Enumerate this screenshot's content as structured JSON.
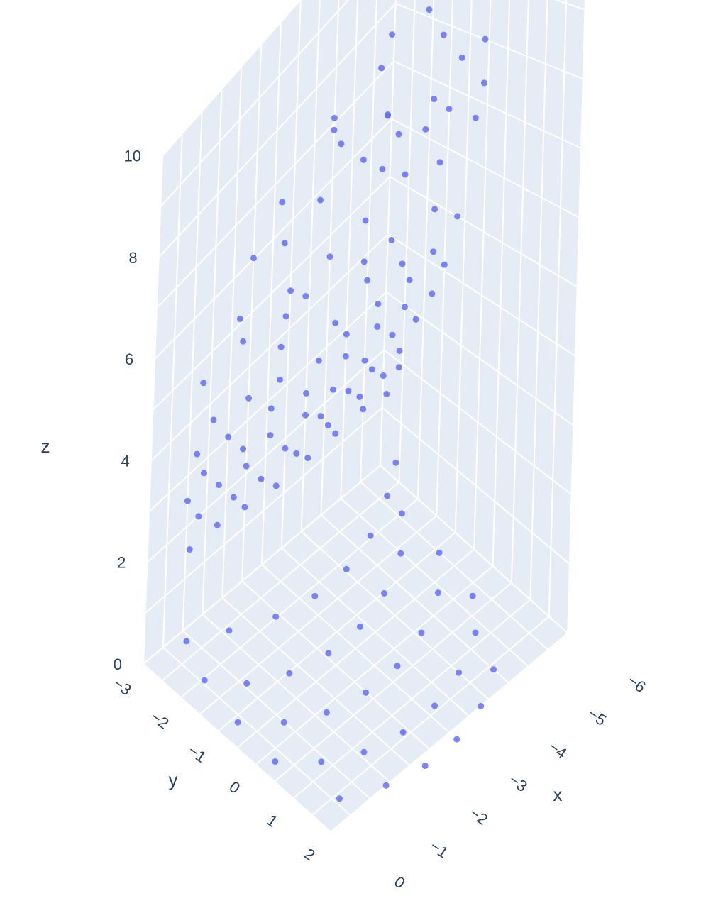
{
  "chart_data": {
    "type": "scatter3d",
    "marker_color": "#636efa",
    "pane_color": "#e5ecf6",
    "grid_color": "#ffffff",
    "text_color": "#2a3f5f",
    "axes": {
      "x": {
        "title": "x",
        "range": [
          -6,
          0
        ],
        "ticks": [
          -6,
          -5,
          -4,
          -3,
          -2,
          -1,
          0
        ],
        "tick_labels": [
          "−6",
          "−5",
          "−4",
          "−3",
          "−2",
          "−1",
          "0"
        ]
      },
      "y": {
        "title": "y",
        "range": [
          -3,
          2
        ],
        "ticks": [
          -3,
          -2,
          -1,
          0,
          1,
          2
        ],
        "tick_labels": [
          "−3",
          "−2",
          "−1",
          "0",
          "1",
          "2"
        ]
      },
      "z": {
        "title": "z",
        "range": [
          0,
          10
        ],
        "ticks": [
          0,
          2,
          4,
          6,
          8,
          10
        ],
        "tick_labels": [
          "0",
          "2",
          "4",
          "6",
          "8",
          "10"
        ]
      }
    },
    "points": [
      [
        -3,
        -0.05,
        10.3
      ],
      [
        -2.4,
        0.3,
        10.25
      ],
      [
        -4.3,
        -0.4,
        9.7
      ],
      [
        -2.7,
        -1.2,
        8.9
      ],
      [
        -4.6,
        -0.3,
        9.1
      ],
      [
        -5,
        0.4,
        8.9
      ],
      [
        -2.6,
        -0.9,
        8.6
      ],
      [
        -3.3,
        -0.4,
        8.7
      ],
      [
        -3.6,
        -0.7,
        8.4
      ],
      [
        -4.3,
        -0.2,
        8.3
      ],
      [
        -5.2,
        -0.4,
        8.3
      ],
      [
        -3.1,
        -1.6,
        8.3
      ],
      [
        -2.0,
        -1.8,
        7.8
      ],
      [
        -3.4,
        -1.1,
        7.7
      ],
      [
        -4.3,
        -1.1,
        7.5
      ],
      [
        -5.1,
        -0.6,
        7.5
      ],
      [
        -5.8,
        -0.4,
        7.5
      ],
      [
        -1.9,
        -1.6,
        7.2
      ],
      [
        -1.6,
        -2.1,
        7.0
      ],
      [
        -2.9,
        -1.7,
        7.2
      ],
      [
        -4.1,
        -1.3,
        7.0
      ],
      [
        -5.0,
        -1.1,
        7.1
      ],
      [
        -5.9,
        -0.7,
        6.8
      ],
      [
        -1.4,
        -2.2,
        6.0
      ],
      [
        -2.3,
        -1.8,
        6.0
      ],
      [
        -3.2,
        -1.7,
        6.0
      ],
      [
        -4.1,
        -1.7,
        6.0
      ],
      [
        -4.9,
        -1.5,
        6.3
      ],
      [
        -5.6,
        -1.3,
        6.1
      ],
      [
        -1.6,
        -2.3,
        5.4
      ],
      [
        -2.4,
        -2.0,
        5.4
      ],
      [
        -3.0,
        -2.1,
        5.3
      ],
      [
        -4.1,
        -1.7,
        5.3
      ],
      [
        -4.8,
        -1.7,
        5.2
      ],
      [
        -5.7,
        -1.5,
        5.2
      ],
      [
        -6.0,
        -1.2,
        5.0
      ],
      [
        -1.0,
        -2.7,
        4.9
      ],
      [
        -2.5,
        -2.2,
        4.7
      ],
      [
        -3.6,
        -1.9,
        4.5
      ],
      [
        -4.5,
        -2.0,
        4.6
      ],
      [
        -5.3,
        -1.9,
        4.4
      ],
      [
        -5.9,
        -1.7,
        4.3
      ],
      [
        -1.2,
        -2.6,
        4.1
      ],
      [
        -1.9,
        -2.4,
        4.1
      ],
      [
        -2.6,
        -2.3,
        4.0
      ],
      [
        -3.3,
        -2.0,
        4.0
      ],
      [
        -4.0,
        -2.0,
        4.0
      ],
      [
        -4.8,
        -2.0,
        4.0
      ],
      [
        -5.5,
        -1.9,
        4.0
      ],
      [
        -6.1,
        -1.6,
        4.0
      ],
      [
        -1.0,
        -2.8,
        3.5
      ],
      [
        -1.6,
        -2.6,
        3.5
      ],
      [
        -2.5,
        -2.4,
        3.5
      ],
      [
        -3.2,
        -2.2,
        3.4
      ],
      [
        -4.2,
        -2.2,
        3.4
      ],
      [
        -5.0,
        -2.2,
        3.4
      ],
      [
        -5.6,
        -2.1,
        3.4
      ],
      [
        -6.1,
        -1.9,
        3.4
      ],
      [
        -1.2,
        -2.8,
        3.0
      ],
      [
        -2.0,
        -2.6,
        3.0
      ],
      [
        -2.6,
        -2.5,
        2.9
      ],
      [
        -3.3,
        -2.3,
        2.9
      ],
      [
        -4.0,
        -2.3,
        2.9
      ],
      [
        -4.8,
        -2.3,
        2.9
      ],
      [
        -5.5,
        -2.3,
        2.9
      ],
      [
        -6.0,
        -2.2,
        2.9
      ],
      [
        -1.0,
        -3.0,
        2.5
      ],
      [
        -1.6,
        -2.8,
        2.5
      ],
      [
        -2.2,
        -2.7,
        2.5
      ],
      [
        -3.0,
        -2.5,
        2.4
      ],
      [
        -3.9,
        -2.5,
        2.4
      ],
      [
        -4.6,
        -2.5,
        2.4
      ],
      [
        -5.2,
        -2.5,
        2.4
      ],
      [
        -5.8,
        -2.4,
        2.4
      ],
      [
        -1.3,
        -3.0,
        2.0
      ],
      [
        -2.0,
        -2.8,
        2.0
      ],
      [
        -2.6,
        -2.7,
        2.0
      ],
      [
        -3.4,
        -2.6,
        2.0
      ],
      [
        -4.2,
        -2.6,
        2.0
      ],
      [
        -5.0,
        -2.6,
        2.0
      ],
      [
        -5.6,
        -2.6,
        2.0
      ],
      [
        -6.0,
        -2.6,
        1.9
      ],
      [
        -1.1,
        -3.0,
        1.5
      ],
      [
        -1.8,
        -3.0,
        1.5
      ],
      [
        -2.4,
        -2.9,
        1.5
      ],
      [
        -3.1,
        -2.8,
        1.5
      ],
      [
        -3.9,
        -2.8,
        1.5
      ],
      [
        -4.6,
        -2.8,
        1.5
      ],
      [
        -5.3,
        -2.8,
        1.5
      ],
      [
        -5.9,
        -2.8,
        1.4
      ],
      [
        -0.5,
        -2.4,
        0.5
      ],
      [
        -1.2,
        -2.0,
        0.5
      ],
      [
        -2.0,
        -1.6,
        0.5
      ],
      [
        -2.8,
        -1.4,
        0.5
      ],
      [
        -3.6,
        -1.4,
        0.5
      ],
      [
        -4.4,
        -1.6,
        0.5
      ],
      [
        -5.2,
        -2.0,
        0.5
      ],
      [
        -5.8,
        -2.4,
        0.5
      ],
      [
        -0.4,
        -1.8,
        0.2
      ],
      [
        -0.9,
        -1.2,
        0.2
      ],
      [
        -1.6,
        -0.8,
        0.2
      ],
      [
        -2.4,
        -0.6,
        0.2
      ],
      [
        -3.2,
        -0.6,
        0.2
      ],
      [
        -4.0,
        -0.8,
        0.2
      ],
      [
        -4.8,
        -1.2,
        0.2
      ],
      [
        -5.4,
        -1.8,
        0.2
      ],
      [
        -0.3,
        -0.8,
        0.1
      ],
      [
        -0.9,
        -0.2,
        0.1
      ],
      [
        -1.6,
        0.2,
        0.1
      ],
      [
        -2.4,
        0.4,
        0.1
      ],
      [
        -3.2,
        0.4,
        0.1
      ],
      [
        -4.0,
        0.2,
        0.1
      ],
      [
        -4.8,
        -0.2,
        0.1
      ],
      [
        -5.4,
        -0.8,
        0.1
      ],
      [
        -0.3,
        0.2,
        0.0
      ],
      [
        -0.9,
        0.8,
        0.0
      ],
      [
        -1.6,
        1.2,
        0.0
      ],
      [
        -2.4,
        1.4,
        0.0
      ],
      [
        -3.2,
        1.4,
        0.0
      ],
      [
        -4.0,
        1.2,
        0.0
      ],
      [
        -4.8,
        0.8,
        0.0
      ],
      [
        -5.3,
        0.2,
        0.0
      ],
      [
        -0.6,
        1.6,
        0.0
      ],
      [
        -1.4,
        2.0,
        0.0
      ],
      [
        -2.2,
        2.2,
        0.0
      ],
      [
        -3.0,
        2.2,
        0.0
      ],
      [
        -3.8,
        2.0,
        0.0
      ],
      [
        -4.5,
        1.6,
        0.0
      ]
    ]
  }
}
